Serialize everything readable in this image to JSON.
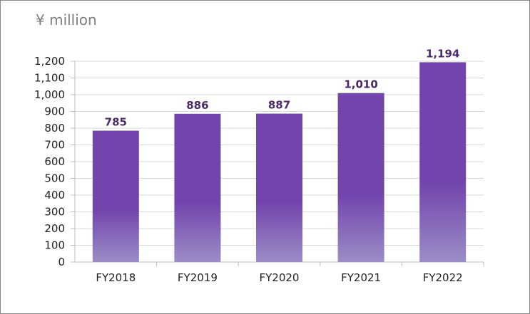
{
  "unit_label": "¥ million",
  "chart_data": {
    "type": "bar",
    "categories": [
      "FY2018",
      "FY2019",
      "FY2020",
      "FY2021",
      "FY2022"
    ],
    "values": [
      785,
      886,
      887,
      1010,
      1194
    ],
    "data_labels": [
      "785",
      "886",
      "887",
      "1,010",
      "1,194"
    ],
    "ylim": [
      0,
      1200
    ],
    "yticks": [
      0,
      100,
      200,
      300,
      400,
      500,
      600,
      700,
      800,
      900,
      1000,
      1100,
      1200
    ],
    "ytick_labels": [
      "0",
      "100",
      "200",
      "300",
      "400",
      "500",
      "600",
      "700",
      "800",
      "900",
      "1,000",
      "1,100",
      "1,200"
    ],
    "grid": true,
    "legend": "none",
    "colors": {
      "bar_top": "#7245ad",
      "bar_bottom": "#9b8cc6",
      "label": "#4b2a6b",
      "grid": "#d9d9d9"
    }
  }
}
